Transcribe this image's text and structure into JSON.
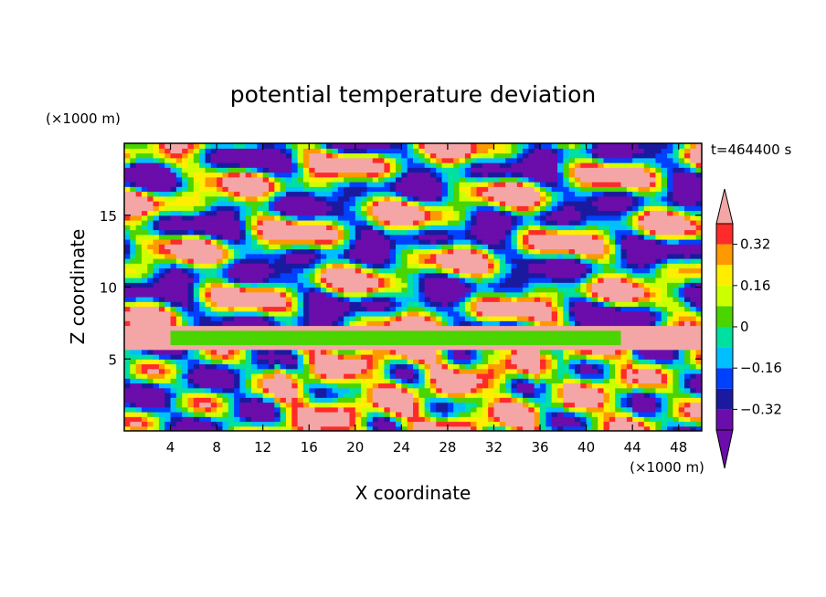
{
  "chart_data": {
    "type": "heatmap",
    "title": "potential temperature deviation",
    "time_label": "t=464400 s",
    "xlabel": "X coordinate",
    "ylabel": "Z coordinate",
    "x_unit": "(×1000 m)",
    "y_unit": "(×1000 m)",
    "xlim": [
      0,
      50
    ],
    "ylim": [
      0,
      20
    ],
    "x_ticks": [
      4,
      8,
      12,
      16,
      20,
      24,
      28,
      32,
      36,
      40,
      44,
      48
    ],
    "y_ticks": [
      5,
      10,
      15
    ],
    "colorbar": {
      "labels": [
        "0.32",
        "0.16",
        "0",
        "−0.16",
        "−0.32"
      ],
      "label_values": [
        0.32,
        0.16,
        0,
        -0.16,
        -0.32
      ],
      "levels": [
        -0.4,
        -0.32,
        -0.24,
        -0.16,
        -0.08,
        0,
        0.08,
        0.16,
        0.24,
        0.32,
        0.4
      ],
      "colors_low_to_high": [
        "#6a0dab",
        "#1a1aa0",
        "#0040ff",
        "#00bfff",
        "#00e0a0",
        "#4ad400",
        "#ccff00",
        "#ffee00",
        "#ff9900",
        "#ff2a2a"
      ],
      "under_color": "#6a0dab",
      "over_color": "#f4a6a6",
      "extend": "both"
    }
  }
}
